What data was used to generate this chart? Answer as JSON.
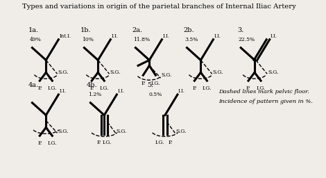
{
  "title": "Types and variations in origin of the parietal branches of Internal Iliac Artery",
  "note_line1": "Dashed lines mark pelvic floor.",
  "note_line2": "Incidence of pattern given in %.",
  "background": "#f0ede8"
}
